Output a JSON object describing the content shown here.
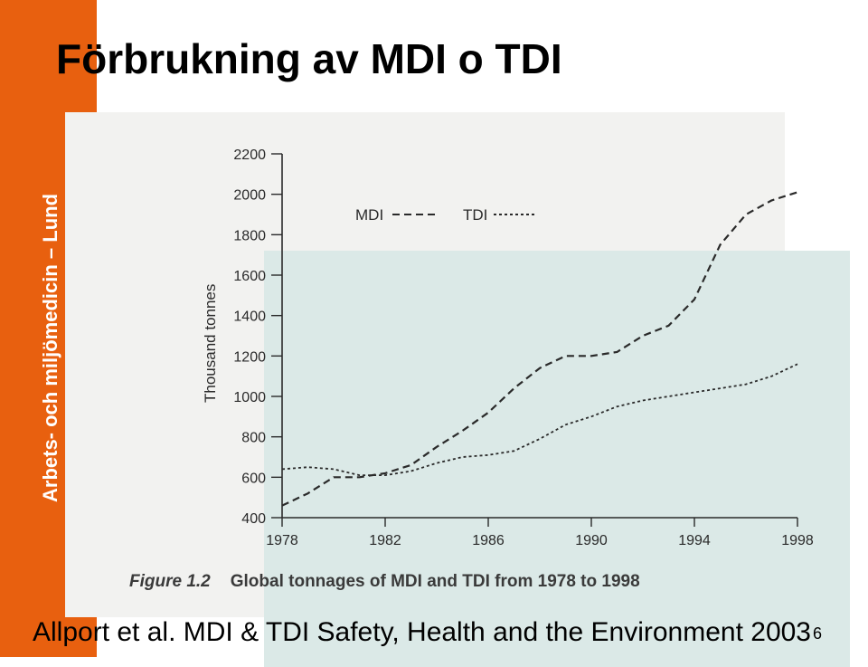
{
  "slide": {
    "title": "Förbrukning av MDI o TDI",
    "side_label": "Arbets- och miljömedicin – Lund",
    "footer": "Allport et al. MDI & TDI Safety, Health and the Environment 2003",
    "page_number": "6"
  },
  "figure": {
    "label": "Figure 1.2",
    "caption": "Global tonnages of MDI and TDI from 1978 to 1998"
  },
  "colors": {
    "accent": "#e8600f",
    "plot_background": "#dbe9e7",
    "line": "#2a2a2a"
  },
  "chart_data": {
    "type": "line",
    "title": "",
    "xlabel": "",
    "ylabel": "Thousand tonnes",
    "xlim": [
      1978,
      1998
    ],
    "ylim": [
      400,
      2200
    ],
    "x_ticks": [
      1978,
      1982,
      1986,
      1990,
      1994,
      1998
    ],
    "x_tick_labels": [
      "1978",
      "1982",
      "1986",
      "1990",
      "1994",
      "1998"
    ],
    "y_ticks": [
      400,
      600,
      800,
      1000,
      1200,
      1400,
      1600,
      1800,
      2000,
      2200
    ],
    "grid": false,
    "legend": "top-left",
    "series": [
      {
        "name": "MDI",
        "style": "dashed",
        "x": [
          1978,
          1979,
          1980,
          1981,
          1982,
          1983,
          1984,
          1985,
          1986,
          1987,
          1988,
          1989,
          1990,
          1991,
          1992,
          1993,
          1994,
          1995,
          1996,
          1997,
          1998
        ],
        "y": [
          460,
          520,
          600,
          600,
          620,
          660,
          750,
          830,
          920,
          1040,
          1140,
          1200,
          1200,
          1220,
          1300,
          1350,
          1480,
          1750,
          1900,
          1970,
          2010
        ]
      },
      {
        "name": "TDI",
        "style": "dotted",
        "x": [
          1978,
          1979,
          1980,
          1981,
          1982,
          1983,
          1984,
          1985,
          1986,
          1987,
          1988,
          1989,
          1990,
          1991,
          1992,
          1993,
          1994,
          1995,
          1996,
          1997,
          1998
        ],
        "y": [
          640,
          650,
          640,
          610,
          610,
          630,
          670,
          700,
          710,
          730,
          790,
          860,
          900,
          950,
          980,
          1000,
          1020,
          1040,
          1060,
          1100,
          1160
        ]
      }
    ]
  }
}
